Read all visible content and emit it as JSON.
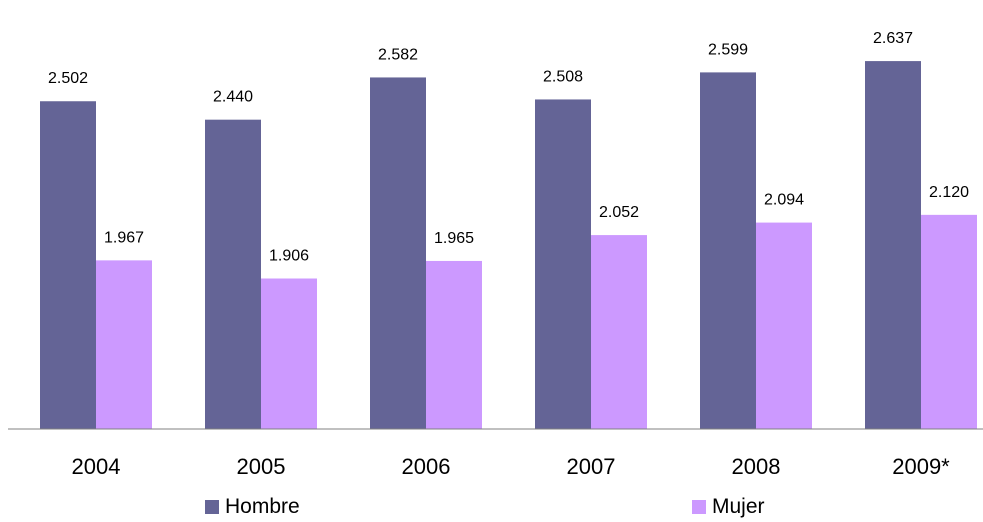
{
  "chart_data": {
    "type": "bar",
    "categories": [
      "2004",
      "2005",
      "2006",
      "2007",
      "2008",
      "2009*"
    ],
    "series": [
      {
        "name": "Hombre",
        "color": "#646496",
        "values": [
          2502,
          2440,
          2582,
          2508,
          2599,
          2637
        ],
        "labels": [
          "2.502",
          "2.440",
          "2.582",
          "2.508",
          "2.599",
          "2.637"
        ]
      },
      {
        "name": "Mujer",
        "color": "#cc99ff",
        "values": [
          1967,
          1906,
          1965,
          2052,
          2094,
          2120
        ],
        "labels": [
          "1.967",
          "1.906",
          "1.965",
          "2.052",
          "2.094",
          "2.120"
        ]
      }
    ],
    "title": "",
    "xlabel": "",
    "ylabel": "",
    "ylim": [
      1400,
      2700
    ],
    "grid": false,
    "legend_position": "bottom"
  }
}
